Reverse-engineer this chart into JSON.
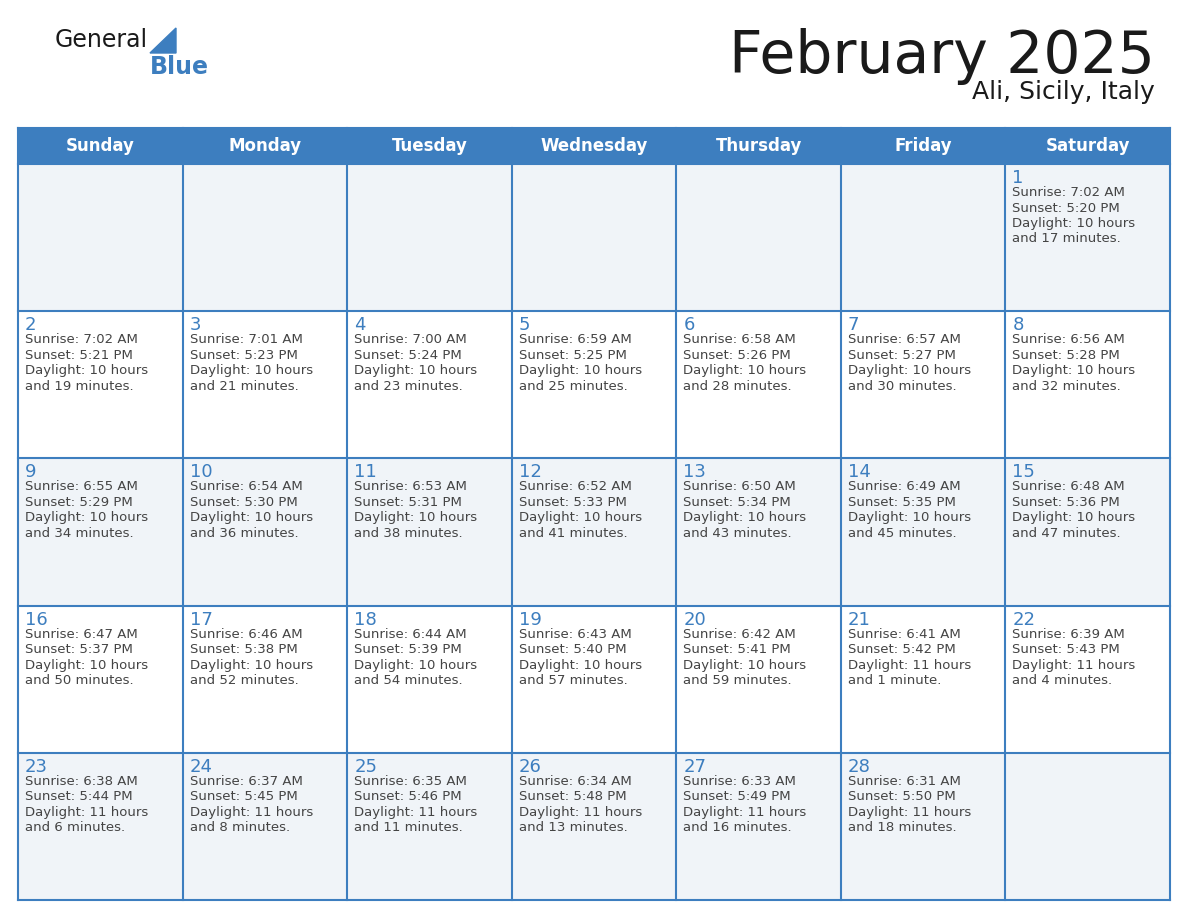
{
  "title": "February 2025",
  "subtitle": "Ali, Sicily, Italy",
  "days_of_week": [
    "Sunday",
    "Monday",
    "Tuesday",
    "Wednesday",
    "Thursday",
    "Friday",
    "Saturday"
  ],
  "header_bg": "#3d7ebf",
  "header_text": "#ffffff",
  "cell_bg_even": "#f0f4f8",
  "cell_bg_odd": "#ffffff",
  "day_number_color": "#3d7ebf",
  "text_color": "#444444",
  "line_color": "#3d7ebf",
  "title_color": "#1a1a1a",
  "logo_general_color": "#1a1a1a",
  "logo_blue_color": "#3d7ebf",
  "calendar_data": [
    [
      null,
      null,
      null,
      null,
      null,
      null,
      {
        "day": 1,
        "sunrise": "7:02 AM",
        "sunset": "5:20 PM",
        "daylight": "10 hours",
        "daylight2": "and 17 minutes."
      }
    ],
    [
      {
        "day": 2,
        "sunrise": "7:02 AM",
        "sunset": "5:21 PM",
        "daylight": "10 hours",
        "daylight2": "and 19 minutes."
      },
      {
        "day": 3,
        "sunrise": "7:01 AM",
        "sunset": "5:23 PM",
        "daylight": "10 hours",
        "daylight2": "and 21 minutes."
      },
      {
        "day": 4,
        "sunrise": "7:00 AM",
        "sunset": "5:24 PM",
        "daylight": "10 hours",
        "daylight2": "and 23 minutes."
      },
      {
        "day": 5,
        "sunrise": "6:59 AM",
        "sunset": "5:25 PM",
        "daylight": "10 hours",
        "daylight2": "and 25 minutes."
      },
      {
        "day": 6,
        "sunrise": "6:58 AM",
        "sunset": "5:26 PM",
        "daylight": "10 hours",
        "daylight2": "and 28 minutes."
      },
      {
        "day": 7,
        "sunrise": "6:57 AM",
        "sunset": "5:27 PM",
        "daylight": "10 hours",
        "daylight2": "and 30 minutes."
      },
      {
        "day": 8,
        "sunrise": "6:56 AM",
        "sunset": "5:28 PM",
        "daylight": "10 hours",
        "daylight2": "and 32 minutes."
      }
    ],
    [
      {
        "day": 9,
        "sunrise": "6:55 AM",
        "sunset": "5:29 PM",
        "daylight": "10 hours",
        "daylight2": "and 34 minutes."
      },
      {
        "day": 10,
        "sunrise": "6:54 AM",
        "sunset": "5:30 PM",
        "daylight": "10 hours",
        "daylight2": "and 36 minutes."
      },
      {
        "day": 11,
        "sunrise": "6:53 AM",
        "sunset": "5:31 PM",
        "daylight": "10 hours",
        "daylight2": "and 38 minutes."
      },
      {
        "day": 12,
        "sunrise": "6:52 AM",
        "sunset": "5:33 PM",
        "daylight": "10 hours",
        "daylight2": "and 41 minutes."
      },
      {
        "day": 13,
        "sunrise": "6:50 AM",
        "sunset": "5:34 PM",
        "daylight": "10 hours",
        "daylight2": "and 43 minutes."
      },
      {
        "day": 14,
        "sunrise": "6:49 AM",
        "sunset": "5:35 PM",
        "daylight": "10 hours",
        "daylight2": "and 45 minutes."
      },
      {
        "day": 15,
        "sunrise": "6:48 AM",
        "sunset": "5:36 PM",
        "daylight": "10 hours",
        "daylight2": "and 47 minutes."
      }
    ],
    [
      {
        "day": 16,
        "sunrise": "6:47 AM",
        "sunset": "5:37 PM",
        "daylight": "10 hours",
        "daylight2": "and 50 minutes."
      },
      {
        "day": 17,
        "sunrise": "6:46 AM",
        "sunset": "5:38 PM",
        "daylight": "10 hours",
        "daylight2": "and 52 minutes."
      },
      {
        "day": 18,
        "sunrise": "6:44 AM",
        "sunset": "5:39 PM",
        "daylight": "10 hours",
        "daylight2": "and 54 minutes."
      },
      {
        "day": 19,
        "sunrise": "6:43 AM",
        "sunset": "5:40 PM",
        "daylight": "10 hours",
        "daylight2": "and 57 minutes."
      },
      {
        "day": 20,
        "sunrise": "6:42 AM",
        "sunset": "5:41 PM",
        "daylight": "10 hours",
        "daylight2": "and 59 minutes."
      },
      {
        "day": 21,
        "sunrise": "6:41 AM",
        "sunset": "5:42 PM",
        "daylight": "11 hours",
        "daylight2": "and 1 minute."
      },
      {
        "day": 22,
        "sunrise": "6:39 AM",
        "sunset": "5:43 PM",
        "daylight": "11 hours",
        "daylight2": "and 4 minutes."
      }
    ],
    [
      {
        "day": 23,
        "sunrise": "6:38 AM",
        "sunset": "5:44 PM",
        "daylight": "11 hours",
        "daylight2": "and 6 minutes."
      },
      {
        "day": 24,
        "sunrise": "6:37 AM",
        "sunset": "5:45 PM",
        "daylight": "11 hours",
        "daylight2": "and 8 minutes."
      },
      {
        "day": 25,
        "sunrise": "6:35 AM",
        "sunset": "5:46 PM",
        "daylight": "11 hours",
        "daylight2": "and 11 minutes."
      },
      {
        "day": 26,
        "sunrise": "6:34 AM",
        "sunset": "5:48 PM",
        "daylight": "11 hours",
        "daylight2": "and 13 minutes."
      },
      {
        "day": 27,
        "sunrise": "6:33 AM",
        "sunset": "5:49 PM",
        "daylight": "11 hours",
        "daylight2": "and 16 minutes."
      },
      {
        "day": 28,
        "sunrise": "6:31 AM",
        "sunset": "5:50 PM",
        "daylight": "11 hours",
        "daylight2": "and 18 minutes."
      },
      null
    ]
  ],
  "figsize": [
    11.88,
    9.18
  ],
  "dpi": 100
}
